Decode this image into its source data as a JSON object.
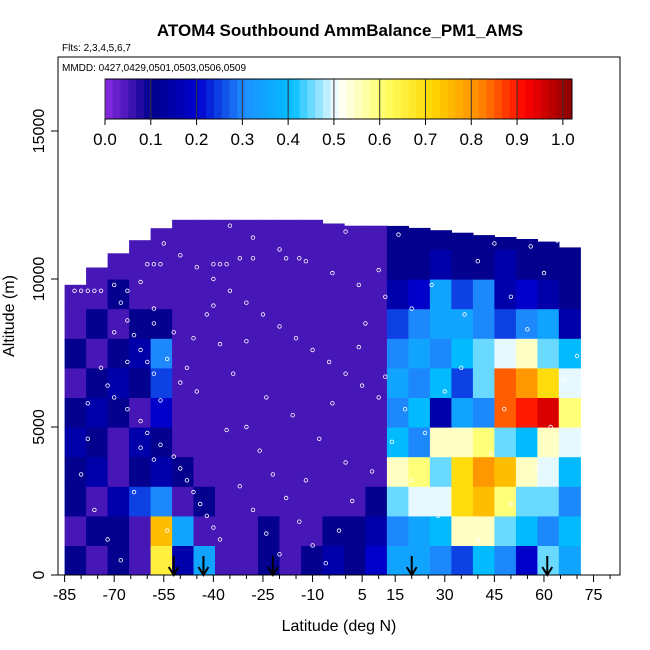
{
  "chart_data": {
    "type": "heatmap",
    "title": "ATOM4 Southbound AmmBalance_PM1_AMS",
    "flights_label": "Flts: 2,3,4,5,6,7",
    "mmdd_label": "MMDD: 0427,0429,0501,0503,0506,0509",
    "xlabel": "Latitude (deg N)",
    "ylabel": "Altitude (m)",
    "x_ticks": [
      -85,
      -70,
      -55,
      -40,
      -25,
      -10,
      5,
      15,
      30,
      45,
      60,
      75
    ],
    "y_ticks": [
      0,
      5000,
      10000,
      15000
    ],
    "xlim": [
      -87,
      83
    ],
    "ylim": [
      0,
      17500
    ],
    "colorbar": {
      "ticks": [
        0.0,
        0.1,
        0.2,
        0.3,
        0.4,
        0.5,
        0.6,
        0.7,
        0.8,
        0.9,
        1.0
      ],
      "tick_labels": [
        "0.0",
        "0.1",
        "0.2",
        "0.3",
        "0.4",
        "0.5",
        "0.6",
        "0.7",
        "0.8",
        "0.9",
        "1.0"
      ],
      "range": [
        0,
        1.02
      ],
      "colors": [
        "#8a2be2",
        "#00008b",
        "#0000cd",
        "#1e90ff",
        "#00bfff",
        "#ffffff",
        "#ffff66",
        "#ffd700",
        "#ff8c00",
        "#ff0000",
        "#8b0000"
      ]
    },
    "coverage": [
      {
        "lat": -84,
        "alt_max": 9600
      },
      {
        "lat": -74,
        "alt_max": 10500
      },
      {
        "lat": -64,
        "alt_max": 11200
      },
      {
        "lat": -56,
        "alt_max": 11700
      },
      {
        "lat": -50,
        "alt_max": 12100
      },
      {
        "lat": -40,
        "alt_max": 12300
      },
      {
        "lat": -25,
        "alt_max": 12300
      },
      {
        "lat": -10,
        "alt_max": 12000
      },
      {
        "lat": 0,
        "alt_max": 11800
      },
      {
        "lat": 15,
        "alt_max": 11800
      },
      {
        "lat": 25,
        "alt_max": 11700
      },
      {
        "lat": 40,
        "alt_max": 11500
      },
      {
        "lat": 60,
        "alt_max": 11300
      },
      {
        "lat": 70,
        "alt_max": 11000
      }
    ],
    "grid_rows": [
      {
        "alt": 500,
        "values": [
          0.1,
          0.05,
          0.1,
          0.05,
          0.65,
          0.15,
          0.35,
          0.05,
          0.05,
          0.1,
          0.05,
          0.1,
          0.15,
          0.1,
          0.2,
          0.35,
          0.35,
          0.3,
          0.25,
          0.4,
          0.3,
          0.2,
          0.45,
          0.35
        ]
      },
      {
        "alt": 1500,
        "values": [
          0.05,
          0.1,
          0.1,
          0.05,
          0.75,
          0.35,
          0.05,
          0.05,
          0.05,
          0.1,
          0.05,
          0.05,
          0.1,
          0.1,
          0.15,
          0.3,
          0.35,
          0.4,
          0.55,
          0.55,
          0.45,
          0.4,
          0.3,
          0.4
        ]
      },
      {
        "alt": 2500,
        "values": [
          0.1,
          0.05,
          0.15,
          0.25,
          0.3,
          0.05,
          0.1,
          0.05,
          0.05,
          0.05,
          0.05,
          0.05,
          0.05,
          0.05,
          0.1,
          0.45,
          0.5,
          0.5,
          0.7,
          0.75,
          0.6,
          0.45,
          0.45,
          0.3
        ]
      },
      {
        "alt": 3500,
        "values": [
          0.1,
          0.15,
          0.05,
          0.1,
          0.15,
          0.1,
          0.05,
          0.05,
          0.05,
          0.05,
          0.05,
          0.05,
          0.05,
          0.05,
          0.05,
          0.55,
          0.6,
          0.45,
          0.7,
          0.8,
          0.75,
          0.55,
          0.5,
          0.4
        ]
      },
      {
        "alt": 4500,
        "values": [
          0.15,
          0.1,
          0.05,
          0.15,
          0.1,
          0.05,
          0.05,
          0.05,
          0.05,
          0.05,
          0.05,
          0.05,
          0.05,
          0.05,
          0.05,
          0.4,
          0.3,
          0.55,
          0.55,
          0.6,
          0.45,
          0.4,
          0.55,
          0.5
        ]
      },
      {
        "alt": 5500,
        "values": [
          0.1,
          0.15,
          0.1,
          0.05,
          0.2,
          0.05,
          0.05,
          0.05,
          0.05,
          0.05,
          0.05,
          0.05,
          0.05,
          0.05,
          0.05,
          0.3,
          0.4,
          0.15,
          0.35,
          0.3,
          0.85,
          0.9,
          0.95,
          0.6
        ]
      },
      {
        "alt": 6500,
        "values": [
          0.05,
          0.1,
          0.15,
          0.1,
          0.25,
          0.05,
          0.05,
          0.05,
          0.05,
          0.05,
          0.05,
          0.05,
          0.05,
          0.05,
          0.05,
          0.35,
          0.3,
          0.4,
          0.25,
          0.45,
          0.85,
          0.8,
          0.7,
          0.5
        ]
      },
      {
        "alt": 7500,
        "values": [
          0.1,
          0.05,
          0.1,
          0.15,
          0.3,
          0.05,
          0.05,
          0.05,
          0.05,
          0.05,
          0.05,
          0.05,
          0.05,
          0.05,
          0.05,
          0.3,
          0.35,
          0.3,
          0.4,
          0.45,
          0.5,
          0.55,
          0.45,
          0.4
        ]
      },
      {
        "alt": 8500,
        "values": [
          0.05,
          0.1,
          0.05,
          0.1,
          0.1,
          0.05,
          0.05,
          0.05,
          0.05,
          0.05,
          0.05,
          0.05,
          0.05,
          0.05,
          0.05,
          0.25,
          0.3,
          0.35,
          0.35,
          0.3,
          0.25,
          0.3,
          0.35,
          0.15
        ]
      },
      {
        "alt": 9500,
        "values": [
          0.05,
          0.05,
          0.1,
          0.05,
          0.05,
          0.05,
          0.05,
          0.05,
          0.05,
          0.05,
          0.05,
          0.05,
          0.05,
          0.05,
          0.05,
          0.15,
          0.2,
          0.35,
          0.25,
          0.3,
          0.15,
          0.2,
          0.15,
          0.1
        ]
      },
      {
        "alt": 10500,
        "values": [
          0.05,
          0.05,
          0.05,
          0.05,
          0.05,
          0.05,
          0.05,
          0.05,
          0.05,
          0.05,
          0.05,
          0.05,
          0.05,
          0.05,
          0.05,
          0.1,
          0.1,
          0.15,
          0.1,
          0.1,
          0.15,
          0.1,
          0.1,
          0.1
        ]
      },
      {
        "alt": 11500,
        "values": [
          0.05,
          0.05,
          0.05,
          0.05,
          0.05,
          0.05,
          0.05,
          0.05,
          0.05,
          0.05,
          0.05,
          0.05,
          0.05,
          0.05,
          0.05,
          0.1,
          0.1,
          0.1,
          0.1,
          0.1,
          0.1,
          0.1,
          0.1,
          0.1
        ]
      }
    ],
    "grid_lat_start": -85,
    "grid_lat_step": 6.5,
    "sample_points": [
      [
        -75,
        10500
      ],
      [
        -70,
        9800
      ],
      [
        -68,
        9200
      ],
      [
        -66,
        8600
      ],
      [
        -64,
        8100
      ],
      [
        -62,
        7600
      ],
      [
        -60,
        7200
      ],
      [
        -58,
        6800
      ],
      [
        -72,
        6400
      ],
      [
        -70,
        6000
      ],
      [
        -66,
        5600
      ],
      [
        -62,
        5200
      ],
      [
        -60,
        4800
      ],
      [
        -56,
        4400
      ],
      [
        -52,
        4000
      ],
      [
        -50,
        3600
      ],
      [
        -48,
        3200
      ],
      [
        -46,
        2800
      ],
      [
        -44,
        2400
      ],
      [
        -42,
        2000
      ],
      [
        -40,
        1600
      ],
      [
        -38,
        1200
      ],
      [
        -55,
        11200
      ],
      [
        -50,
        10800
      ],
      [
        -45,
        10400
      ],
      [
        -40,
        10000
      ],
      [
        -35,
        9600
      ],
      [
        -30,
        9200
      ],
      [
        -25,
        8800
      ],
      [
        -20,
        8400
      ],
      [
        -15,
        8000
      ],
      [
        -10,
        7600
      ],
      [
        -5,
        7200
      ],
      [
        0,
        6800
      ],
      [
        5,
        6400
      ],
      [
        10,
        6000
      ],
      [
        -35,
        11800
      ],
      [
        -28,
        11400
      ],
      [
        -20,
        11000
      ],
      [
        -12,
        10600
      ],
      [
        -4,
        10200
      ],
      [
        4,
        9800
      ],
      [
        12,
        9400
      ],
      [
        -30,
        5000
      ],
      [
        -26,
        4200
      ],
      [
        -22,
        3400
      ],
      [
        -18,
        2600
      ],
      [
        -14,
        1800
      ],
      [
        -10,
        1000
      ],
      [
        -6,
        400
      ],
      [
        -2,
        1500
      ],
      [
        2,
        2500
      ],
      [
        8,
        3500
      ],
      [
        14,
        4500
      ],
      [
        -48,
        7000
      ],
      [
        -45,
        6200
      ],
      [
        -52,
        8200
      ],
      [
        -58,
        9000
      ],
      [
        -62,
        9900
      ],
      [
        -78,
        4600
      ],
      [
        -80,
        3400
      ],
      [
        -76,
        2200
      ],
      [
        -72,
        1200
      ],
      [
        -68,
        500
      ],
      [
        -64,
        2800
      ],
      [
        -58,
        3900
      ],
      [
        -54,
        1500
      ],
      [
        -42,
        8800
      ],
      [
        -38,
        7800
      ],
      [
        -34,
        6800
      ],
      [
        -30,
        7900
      ],
      [
        -24,
        6000
      ],
      [
        -16,
        5400
      ],
      [
        -8,
        4600
      ],
      [
        0,
        3800
      ],
      [
        6,
        8500
      ],
      [
        10,
        10300
      ],
      [
        16,
        11500
      ],
      [
        20,
        9000
      ],
      [
        -44,
        12200
      ],
      [
        -20,
        12100
      ],
      [
        0,
        11600
      ],
      [
        56,
        11100
      ],
      [
        60,
        10200
      ],
      [
        55,
        8300
      ],
      [
        50,
        9400
      ],
      [
        45,
        11200
      ],
      [
        40,
        10600
      ],
      [
        35,
        7000
      ],
      [
        30,
        6200
      ],
      [
        24,
        4800
      ],
      [
        20,
        3200
      ],
      [
        28,
        2000
      ],
      [
        40,
        1200
      ],
      [
        50,
        2400
      ],
      [
        58,
        3600
      ],
      [
        62,
        5000
      ],
      [
        66,
        6600
      ],
      [
        70,
        7400
      ],
      [
        44,
        4100
      ],
      [
        48,
        5600
      ],
      [
        36,
        8800
      ],
      [
        26,
        9800
      ],
      [
        -82,
        9600
      ],
      [
        -80,
        9600
      ],
      [
        -78,
        9600
      ],
      [
        -76,
        9600
      ],
      [
        -74,
        9600
      ],
      [
        -60,
        10500
      ],
      [
        -58,
        10500
      ],
      [
        -56,
        10500
      ],
      [
        -40,
        10500
      ],
      [
        -38,
        10500
      ],
      [
        -36,
        10500
      ],
      [
        -32,
        10700
      ],
      [
        -28,
        10700
      ],
      [
        -18,
        10700
      ],
      [
        -14,
        10700
      ],
      [
        -20,
        12300
      ],
      [
        -18,
        12300
      ],
      [
        -16,
        12300
      ],
      [
        -14,
        12300
      ],
      [
        64,
        11300
      ],
      [
        66,
        11300
      ],
      [
        68,
        11300
      ],
      [
        -66,
        7200
      ],
      [
        -62,
        4300
      ],
      [
        -56,
        5900
      ],
      [
        -50,
        6500
      ],
      [
        -46,
        8000
      ],
      [
        -40,
        9100
      ],
      [
        -36,
        4900
      ],
      [
        -32,
        3000
      ],
      [
        -28,
        2200
      ],
      [
        -24,
        1400
      ],
      [
        -20,
        700
      ],
      [
        -12,
        3200
      ],
      [
        -4,
        5800
      ],
      [
        4,
        7700
      ],
      [
        12,
        6700
      ],
      [
        18,
        5600
      ],
      [
        -54,
        7300
      ],
      [
        -58,
        8500
      ],
      [
        -66,
        9600
      ],
      [
        -70,
        8200
      ],
      [
        -74,
        7000
      ],
      [
        -78,
        5800
      ]
    ],
    "markers_lat": [
      -52,
      -43,
      -22,
      20,
      61
    ]
  }
}
